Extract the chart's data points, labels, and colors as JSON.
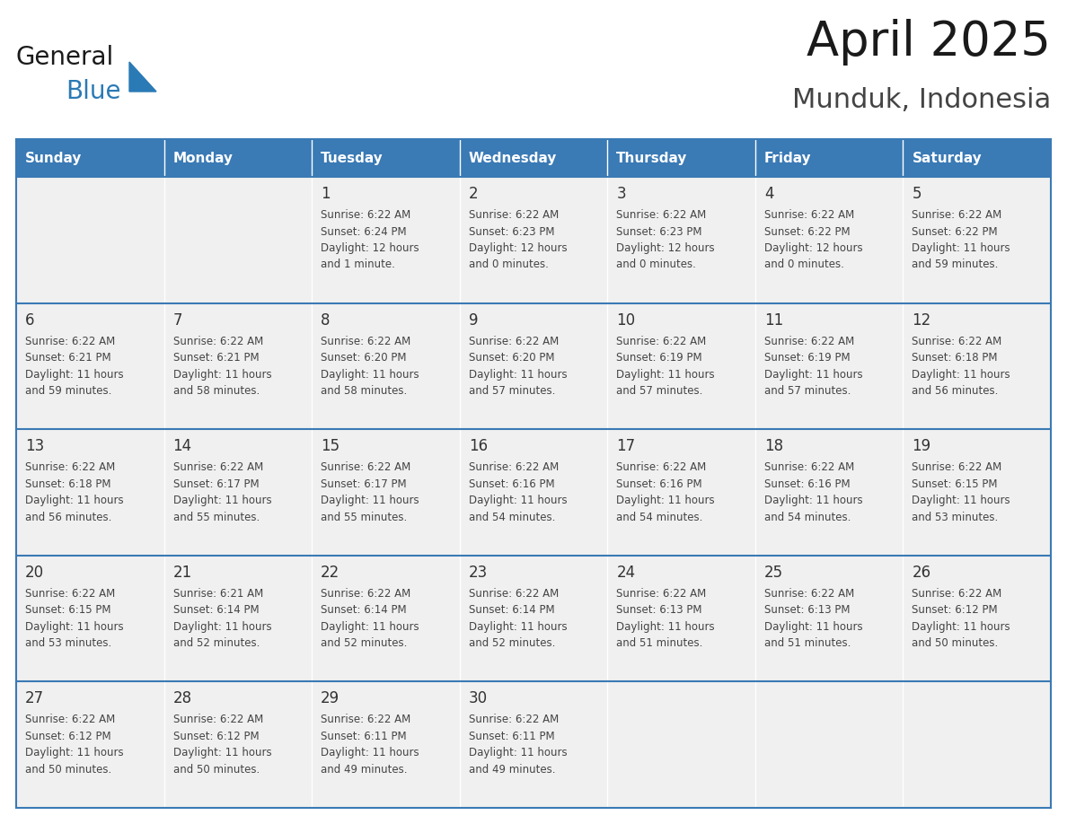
{
  "title": "April 2025",
  "subtitle": "Munduk, Indonesia",
  "days_of_week": [
    "Sunday",
    "Monday",
    "Tuesday",
    "Wednesday",
    "Thursday",
    "Friday",
    "Saturday"
  ],
  "header_bg": "#3A7AB5",
  "header_text": "#FFFFFF",
  "cell_bg": "#F0F0F0",
  "grid_line_color": "#3A7AB5",
  "day_num_color": "#333333",
  "text_color": "#444444",
  "title_color": "#1a1a1a",
  "subtitle_color": "#444444",
  "calendar": [
    [
      "",
      "",
      "1\nSunrise: 6:22 AM\nSunset: 6:24 PM\nDaylight: 12 hours\nand 1 minute.",
      "2\nSunrise: 6:22 AM\nSunset: 6:23 PM\nDaylight: 12 hours\nand 0 minutes.",
      "3\nSunrise: 6:22 AM\nSunset: 6:23 PM\nDaylight: 12 hours\nand 0 minutes.",
      "4\nSunrise: 6:22 AM\nSunset: 6:22 PM\nDaylight: 12 hours\nand 0 minutes.",
      "5\nSunrise: 6:22 AM\nSunset: 6:22 PM\nDaylight: 11 hours\nand 59 minutes."
    ],
    [
      "6\nSunrise: 6:22 AM\nSunset: 6:21 PM\nDaylight: 11 hours\nand 59 minutes.",
      "7\nSunrise: 6:22 AM\nSunset: 6:21 PM\nDaylight: 11 hours\nand 58 minutes.",
      "8\nSunrise: 6:22 AM\nSunset: 6:20 PM\nDaylight: 11 hours\nand 58 minutes.",
      "9\nSunrise: 6:22 AM\nSunset: 6:20 PM\nDaylight: 11 hours\nand 57 minutes.",
      "10\nSunrise: 6:22 AM\nSunset: 6:19 PM\nDaylight: 11 hours\nand 57 minutes.",
      "11\nSunrise: 6:22 AM\nSunset: 6:19 PM\nDaylight: 11 hours\nand 57 minutes.",
      "12\nSunrise: 6:22 AM\nSunset: 6:18 PM\nDaylight: 11 hours\nand 56 minutes."
    ],
    [
      "13\nSunrise: 6:22 AM\nSunset: 6:18 PM\nDaylight: 11 hours\nand 56 minutes.",
      "14\nSunrise: 6:22 AM\nSunset: 6:17 PM\nDaylight: 11 hours\nand 55 minutes.",
      "15\nSunrise: 6:22 AM\nSunset: 6:17 PM\nDaylight: 11 hours\nand 55 minutes.",
      "16\nSunrise: 6:22 AM\nSunset: 6:16 PM\nDaylight: 11 hours\nand 54 minutes.",
      "17\nSunrise: 6:22 AM\nSunset: 6:16 PM\nDaylight: 11 hours\nand 54 minutes.",
      "18\nSunrise: 6:22 AM\nSunset: 6:16 PM\nDaylight: 11 hours\nand 54 minutes.",
      "19\nSunrise: 6:22 AM\nSunset: 6:15 PM\nDaylight: 11 hours\nand 53 minutes."
    ],
    [
      "20\nSunrise: 6:22 AM\nSunset: 6:15 PM\nDaylight: 11 hours\nand 53 minutes.",
      "21\nSunrise: 6:21 AM\nSunset: 6:14 PM\nDaylight: 11 hours\nand 52 minutes.",
      "22\nSunrise: 6:22 AM\nSunset: 6:14 PM\nDaylight: 11 hours\nand 52 minutes.",
      "23\nSunrise: 6:22 AM\nSunset: 6:14 PM\nDaylight: 11 hours\nand 52 minutes.",
      "24\nSunrise: 6:22 AM\nSunset: 6:13 PM\nDaylight: 11 hours\nand 51 minutes.",
      "25\nSunrise: 6:22 AM\nSunset: 6:13 PM\nDaylight: 11 hours\nand 51 minutes.",
      "26\nSunrise: 6:22 AM\nSunset: 6:12 PM\nDaylight: 11 hours\nand 50 minutes."
    ],
    [
      "27\nSunrise: 6:22 AM\nSunset: 6:12 PM\nDaylight: 11 hours\nand 50 minutes.",
      "28\nSunrise: 6:22 AM\nSunset: 6:12 PM\nDaylight: 11 hours\nand 50 minutes.",
      "29\nSunrise: 6:22 AM\nSunset: 6:11 PM\nDaylight: 11 hours\nand 49 minutes.",
      "30\nSunrise: 6:22 AM\nSunset: 6:11 PM\nDaylight: 11 hours\nand 49 minutes.",
      "",
      "",
      ""
    ]
  ],
  "logo_text_general": "General",
  "logo_text_blue": "Blue",
  "logo_color_general": "#1a1a1a",
  "logo_color_blue": "#2A7AB5",
  "logo_triangle_color": "#2A7AB5",
  "fig_width": 11.88,
  "fig_height": 9.18,
  "dpi": 100
}
